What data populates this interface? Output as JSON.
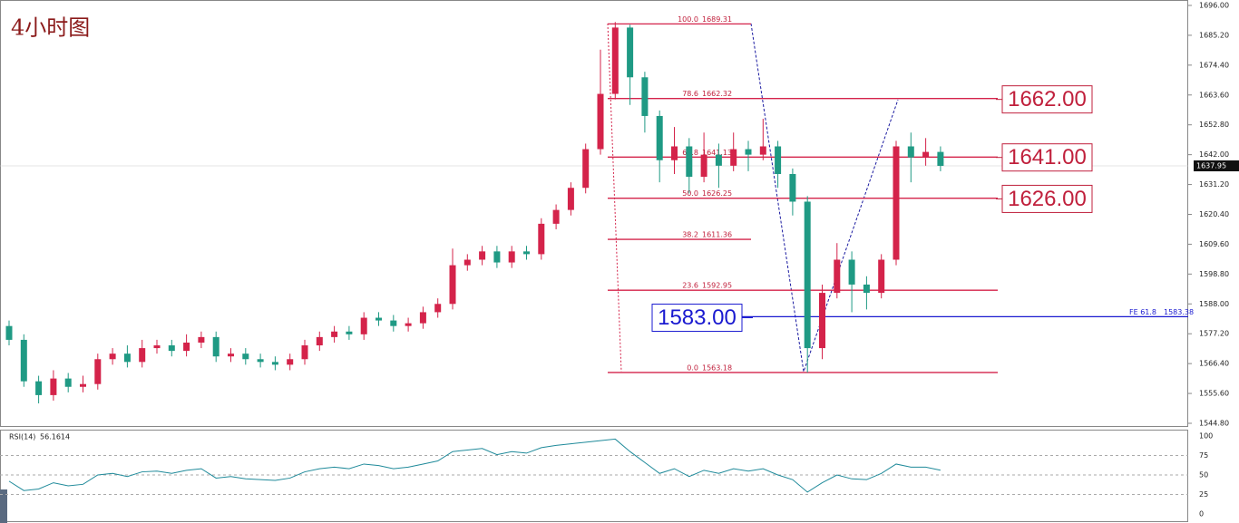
{
  "chart_data": {
    "type": "candlestick",
    "title": "4小时图",
    "up_color": "#d4234a",
    "down_color": "#1f9a84",
    "open": [
      1580,
      1575,
      1560,
      1555,
      1561,
      1558,
      1559,
      1568,
      1570,
      1567,
      1572,
      1573,
      1571,
      1574,
      1576,
      1569,
      1570,
      1568,
      1567,
      1566,
      1568,
      1573,
      1576,
      1578,
      1577,
      1583,
      1582,
      1580,
      1581,
      1585,
      1588,
      1602,
      1604,
      1607,
      1603,
      1607,
      1606,
      1617,
      1622,
      1630,
      1644,
      1664,
      1688,
      1670,
      1656,
      1640,
      1645,
      1634,
      1642,
      1638,
      1644,
      1642,
      1645,
      1635,
      1625,
      1572,
      1592,
      1604,
      1595,
      1592,
      1604,
      1645,
      1641,
      1643
    ],
    "high": [
      1582,
      1577,
      1562,
      1564,
      1563,
      1562,
      1570,
      1572,
      1573,
      1575,
      1575,
      1575,
      1577,
      1578,
      1578,
      1572,
      1572,
      1570,
      1569,
      1570,
      1575,
      1578,
      1580,
      1580,
      1585,
      1585,
      1584,
      1583,
      1587,
      1590,
      1608,
      1606,
      1609,
      1609,
      1609,
      1609,
      1619,
      1624,
      1632,
      1646,
      1680,
      1690,
      1689,
      1672,
      1658,
      1652,
      1648,
      1650,
      1646,
      1650,
      1647,
      1655,
      1647,
      1637,
      1627,
      1595,
      1610,
      1607,
      1598,
      1606,
      1647,
      1650,
      1648,
      1645
    ],
    "low": [
      1573,
      1558,
      1552,
      1553,
      1556,
      1556,
      1557,
      1566,
      1565,
      1565,
      1570,
      1569,
      1569,
      1572,
      1567,
      1567,
      1566,
      1565,
      1564,
      1564,
      1566,
      1571,
      1574,
      1575,
      1575,
      1580,
      1578,
      1578,
      1579,
      1583,
      1586,
      1600,
      1602,
      1601,
      1601,
      1604,
      1604,
      1615,
      1620,
      1628,
      1642,
      1662,
      1660,
      1650,
      1632,
      1635,
      1628,
      1632,
      1630,
      1636,
      1636,
      1640,
      1630,
      1620,
      1563.18,
      1568,
      1590,
      1585,
      1586,
      1590,
      1602,
      1632,
      1638,
      1636
    ],
    "close": [
      1575,
      1560,
      1555,
      1561,
      1558,
      1559,
      1568,
      1570,
      1567,
      1572,
      1573,
      1571,
      1574,
      1576,
      1569,
      1570,
      1568,
      1567,
      1566,
      1568,
      1573,
      1576,
      1578,
      1577,
      1583,
      1582,
      1580,
      1581,
      1585,
      1588,
      1602,
      1604,
      1607,
      1603,
      1607,
      1606,
      1617,
      1622,
      1630,
      1644,
      1664,
      1688,
      1670,
      1656,
      1640,
      1645,
      1634,
      1642,
      1638,
      1644,
      1642,
      1645,
      1635,
      1625,
      1572,
      1592,
      1604,
      1595,
      1592,
      1604,
      1645,
      1641,
      1643,
      1637.95
    ],
    "ylim": [
      1544.8,
      1696
    ],
    "yticks": [
      {
        "value": 1696,
        "label": "1696.00"
      },
      {
        "value": 1685.2,
        "label": "1685.20"
      },
      {
        "value": 1674.4,
        "label": "1674.40"
      },
      {
        "value": 1663.6,
        "label": "1663.60"
      },
      {
        "value": 1652.8,
        "label": "1652.80"
      },
      {
        "value": 1642,
        "label": "1642.00"
      },
      {
        "value": 1631.2,
        "label": "1631.20"
      },
      {
        "value": 1620.4,
        "label": "1620.40"
      },
      {
        "value": 1609.6,
        "label": "1609.60"
      },
      {
        "value": 1598.8,
        "label": "1598.80"
      },
      {
        "value": 1588,
        "label": "1588.00"
      },
      {
        "value": 1577.2,
        "label": "1577.20"
      },
      {
        "value": 1566.4,
        "label": "1566.40"
      },
      {
        "value": 1555.6,
        "label": "1555.60"
      },
      {
        "value": 1544.8,
        "label": "1544.80"
      }
    ],
    "current_price": 1637.95,
    "fib_levels": [
      {
        "level": "100.0",
        "price": 1689.31
      },
      {
        "level": "78.6",
        "price": 1662.32
      },
      {
        "level": "61.8",
        "price": 1641.13
      },
      {
        "level": "50.0",
        "price": 1626.25
      },
      {
        "level": "38.2",
        "price": 1611.36
      },
      {
        "level": "23.6",
        "price": 1592.95
      },
      {
        "level": "0.0",
        "price": 1563.18
      }
    ],
    "price_boxes": [
      {
        "value": 1662,
        "label": "1662.00"
      },
      {
        "value": 1641,
        "label": "1641.00"
      },
      {
        "value": 1626,
        "label": "1626.00"
      },
      {
        "value": 1583,
        "label": "1583.00"
      }
    ],
    "fe_level": {
      "level": "FE 61.8",
      "price": 1583.38
    },
    "rsi": {
      "name": "RSI(14)",
      "color": "#1f8a9a",
      "values": [
        42,
        30,
        32,
        40,
        36,
        38,
        50,
        52,
        48,
        54,
        55,
        52,
        56,
        58,
        46,
        48,
        45,
        44,
        43,
        46,
        54,
        58,
        60,
        58,
        64,
        62,
        58,
        60,
        64,
        68,
        80,
        82,
        84,
        76,
        80,
        78,
        85,
        88,
        90,
        92,
        94,
        96,
        80,
        66,
        52,
        58,
        48,
        56,
        52,
        58,
        55,
        58,
        50,
        44,
        28,
        40,
        50,
        45,
        44,
        52,
        64,
        60,
        60,
        56.1614
      ],
      "ylim": [
        0,
        100
      ],
      "yticks": [
        100,
        75,
        50,
        25,
        0
      ]
    }
  }
}
